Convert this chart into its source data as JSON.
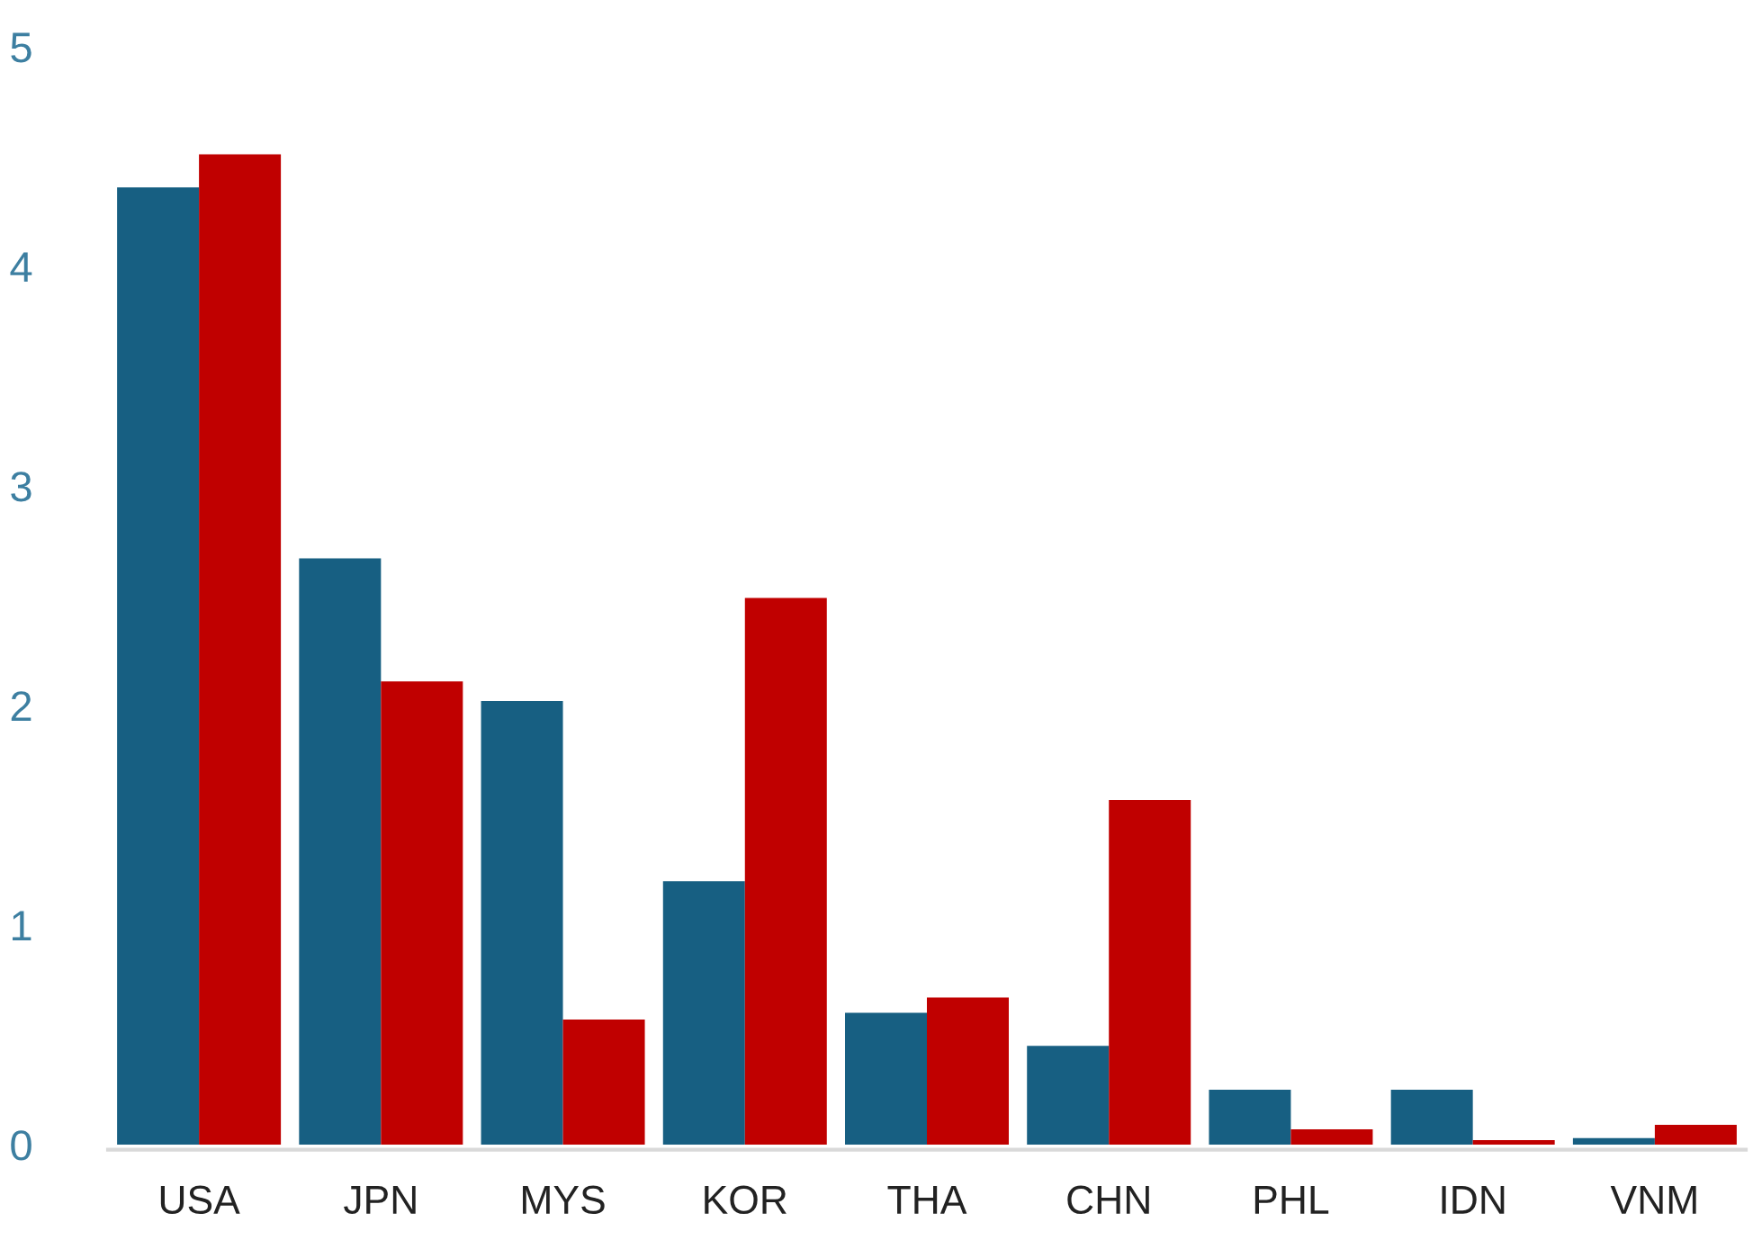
{
  "chart_data": {
    "type": "bar",
    "categories": [
      "USA",
      "JPN",
      "MYS",
      "KOR",
      "THA",
      "CHN",
      "PHL",
      "IDN",
      "VNM"
    ],
    "series": [
      {
        "color": "#175f82",
        "values": [
          4.36,
          2.67,
          2.02,
          1.2,
          0.6,
          0.45,
          0.25,
          0.25,
          0.03
        ]
      },
      {
        "color": "#c00000",
        "values": [
          4.51,
          2.11,
          0.57,
          2.49,
          0.67,
          1.57,
          0.07,
          0.02,
          0.09
        ]
      }
    ],
    "ylim": [
      0,
      5
    ],
    "yticks": [
      0,
      1,
      2,
      3,
      4,
      5
    ],
    "grid": false,
    "legend": false
  }
}
